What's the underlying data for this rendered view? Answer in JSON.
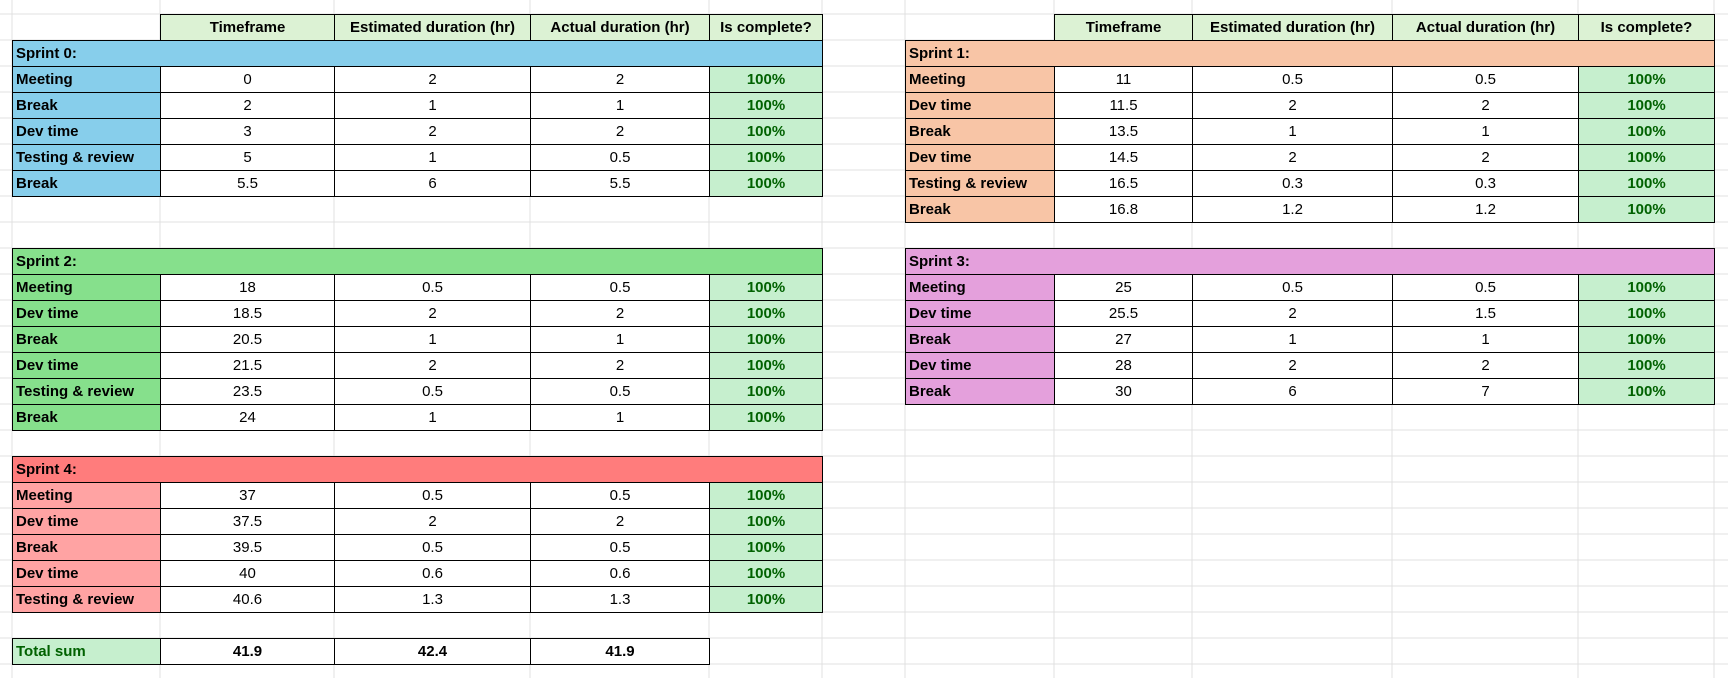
{
  "header": {
    "timeframe": "Timeframe",
    "estimated": "Estimated duration (hr)",
    "actual": "Actual duration (hr)",
    "complete": "Is complete?"
  },
  "sprints": [
    {
      "title": "Sprint 0:",
      "color": "#87ceeb",
      "rows": [
        {
          "task": "Meeting",
          "timeframe": "0",
          "estimated": "2",
          "actual": "2",
          "complete": "100%"
        },
        {
          "task": "Break",
          "timeframe": "2",
          "estimated": "1",
          "actual": "1",
          "complete": "100%"
        },
        {
          "task": "Dev time",
          "timeframe": "3",
          "estimated": "2",
          "actual": "2",
          "complete": "100%"
        },
        {
          "task": "Testing & review",
          "timeframe": "5",
          "estimated": "1",
          "actual": "0.5",
          "complete": "100%"
        },
        {
          "task": "Break",
          "timeframe": "5.5",
          "estimated": "6",
          "actual": "5.5",
          "complete": "100%"
        }
      ]
    },
    {
      "title": "Sprint 1:",
      "color": "#f8c5a6",
      "rows": [
        {
          "task": "Meeting",
          "timeframe": "11",
          "estimated": "0.5",
          "actual": "0.5",
          "complete": "100%"
        },
        {
          "task": "Dev time",
          "timeframe": "11.5",
          "estimated": "2",
          "actual": "2",
          "complete": "100%"
        },
        {
          "task": "Break",
          "timeframe": "13.5",
          "estimated": "1",
          "actual": "1",
          "complete": "100%"
        },
        {
          "task": "Dev time",
          "timeframe": "14.5",
          "estimated": "2",
          "actual": "2",
          "complete": "100%"
        },
        {
          "task": "Testing & review",
          "timeframe": "16.5",
          "estimated": "0.3",
          "actual": "0.3",
          "complete": "100%"
        },
        {
          "task": "Break",
          "timeframe": "16.8",
          "estimated": "1.2",
          "actual": "1.2",
          "complete": "100%"
        }
      ]
    },
    {
      "title": "Sprint 2:",
      "color": "#86e08c",
      "rows": [
        {
          "task": "Meeting",
          "timeframe": "18",
          "estimated": "0.5",
          "actual": "0.5",
          "complete": "100%"
        },
        {
          "task": "Dev time",
          "timeframe": "18.5",
          "estimated": "2",
          "actual": "2",
          "complete": "100%"
        },
        {
          "task": "Break",
          "timeframe": "20.5",
          "estimated": "1",
          "actual": "1",
          "complete": "100%"
        },
        {
          "task": "Dev time",
          "timeframe": "21.5",
          "estimated": "2",
          "actual": "2",
          "complete": "100%"
        },
        {
          "task": "Testing & review",
          "timeframe": "23.5",
          "estimated": "0.5",
          "actual": "0.5",
          "complete": "100%"
        },
        {
          "task": "Break",
          "timeframe": "24",
          "estimated": "1",
          "actual": "1",
          "complete": "100%"
        }
      ]
    },
    {
      "title": "Sprint 3:",
      "color": "#e4a0dc",
      "rows": [
        {
          "task": "Meeting",
          "timeframe": "25",
          "estimated": "0.5",
          "actual": "0.5",
          "complete": "100%"
        },
        {
          "task": "Dev time",
          "timeframe": "25.5",
          "estimated": "2",
          "actual": "1.5",
          "complete": "100%"
        },
        {
          "task": "Break",
          "timeframe": "27",
          "estimated": "1",
          "actual": "1",
          "complete": "100%"
        },
        {
          "task": "Dev time",
          "timeframe": "28",
          "estimated": "2",
          "actual": "2",
          "complete": "100%"
        },
        {
          "task": "Break",
          "timeframe": "30",
          "estimated": "6",
          "actual": "7",
          "complete": "100%"
        }
      ]
    },
    {
      "title": "Sprint 4:",
      "color": "#ff7c7c",
      "label_color": "#ffa3a3",
      "rows": [
        {
          "task": "Meeting",
          "timeframe": "37",
          "estimated": "0.5",
          "actual": "0.5",
          "complete": "100%"
        },
        {
          "task": "Dev time",
          "timeframe": "37.5",
          "estimated": "2",
          "actual": "2",
          "complete": "100%"
        },
        {
          "task": "Break",
          "timeframe": "39.5",
          "estimated": "0.5",
          "actual": "0.5",
          "complete": "100%"
        },
        {
          "task": "Dev time",
          "timeframe": "40",
          "estimated": "0.6",
          "actual": "0.6",
          "complete": "100%"
        },
        {
          "task": "Testing & review",
          "timeframe": "40.6",
          "estimated": "1.3",
          "actual": "1.3",
          "complete": "100%"
        }
      ]
    }
  ],
  "total": {
    "label": "Total sum",
    "timeframe": "41.9",
    "estimated": "42.4",
    "actual": "41.9"
  },
  "colors": {
    "header_bg": "#dcf2d4",
    "complete_bg": "#c6efce",
    "complete_text": "#006100",
    "gridline": "#e1e1e1"
  }
}
